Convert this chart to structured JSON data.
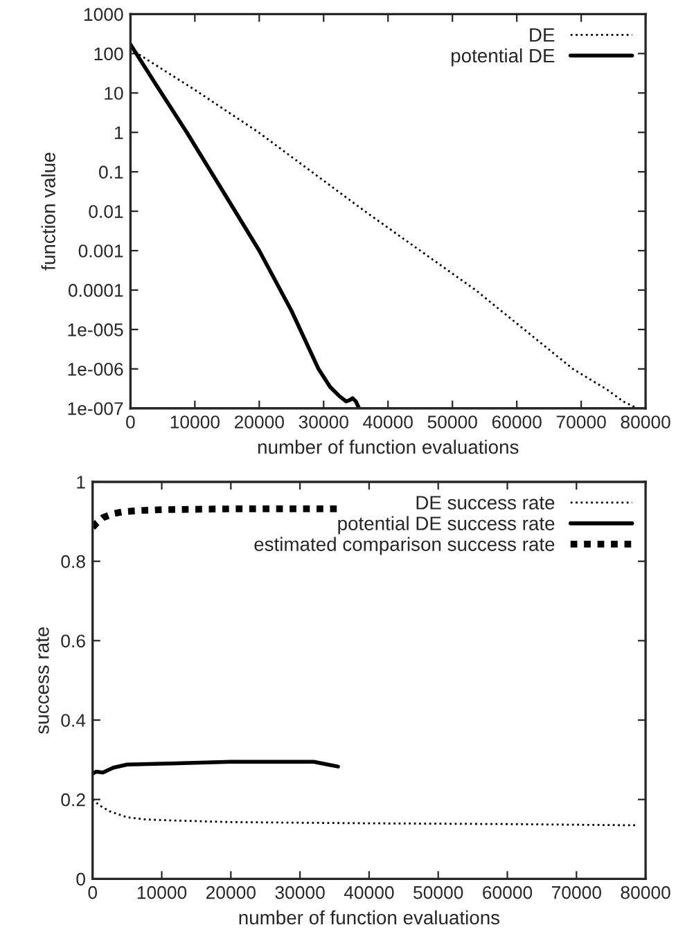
{
  "chart_data": [
    {
      "type": "line",
      "xlabel": "number of function evaluations",
      "ylabel": "function value",
      "log": "y",
      "legend": "top right",
      "grid": false,
      "xlim": [
        0,
        80000
      ],
      "xticks": [
        0,
        10000,
        20000,
        30000,
        40000,
        50000,
        60000,
        70000,
        80000
      ],
      "ylim": [
        1e-07,
        1000
      ],
      "yticks": [
        {
          "value": 1e-07,
          "label": "1e-007"
        },
        {
          "value": 1e-06,
          "label": "1e-006"
        },
        {
          "value": 1e-05,
          "label": "1e-005"
        },
        0.0001,
        0.001,
        0.01,
        0.1,
        1,
        10,
        100,
        1000
      ],
      "series": [
        {
          "name": "DE",
          "color": "#000000",
          "line_style": "dotted",
          "x": [
            0,
            10000,
            19900,
            36400,
            53600,
            68700,
            74000,
            76500,
            78700
          ],
          "values": [
            130,
            12,
            1,
            0.01,
            0.0001,
            1e-06,
            3e-07,
            1.5e-07,
            1e-07
          ]
        },
        {
          "name": "potential DE",
          "color": "#000000",
          "line_style": "solid",
          "x": [
            0,
            4000,
            8750,
            14000,
            20000,
            25000,
            29200,
            31000,
            32500,
            33500,
            34000,
            34500,
            35000,
            35500
          ],
          "values": [
            170,
            16,
            1,
            0.04,
            0.001,
            3e-05,
            1e-06,
            3.5e-07,
            2e-07,
            1.5e-07,
            1.6e-07,
            1.8e-07,
            1.5e-07,
            1e-07
          ]
        }
      ]
    },
    {
      "type": "line",
      "xlabel": "number of function evaluations",
      "ylabel": "success rate",
      "legend": "top right",
      "grid": false,
      "xlim": [
        0,
        80000
      ],
      "xticks": [
        0,
        10000,
        20000,
        30000,
        40000,
        50000,
        60000,
        70000,
        80000
      ],
      "ylim": [
        0,
        1
      ],
      "yticks": [
        0,
        0.2,
        0.4,
        0.6,
        0.8,
        1
      ],
      "series": [
        {
          "name": "DE success rate",
          "color": "#000000",
          "line_style": "dotted",
          "x": [
            0,
            1000,
            2500,
            5000,
            7500,
            10000,
            20000,
            40000,
            60000,
            78500
          ],
          "values": [
            0.2,
            0.185,
            0.17,
            0.155,
            0.15,
            0.148,
            0.143,
            0.14,
            0.138,
            0.135
          ]
        },
        {
          "name": "potential DE success rate",
          "color": "#000000",
          "line_style": "solid",
          "x": [
            0,
            500,
            1500,
            3000,
            5000,
            10000,
            20000,
            32000,
            34000,
            35500
          ],
          "values": [
            0.265,
            0.27,
            0.268,
            0.28,
            0.288,
            0.29,
            0.295,
            0.295,
            0.288,
            0.283
          ]
        },
        {
          "name": "estimated comparison success rate",
          "color": "#000000",
          "line_style": "dashed",
          "x": [
            0,
            500,
            1500,
            3000,
            4500,
            7000,
            10000,
            20000,
            35500
          ],
          "values": [
            0.885,
            0.895,
            0.91,
            0.92,
            0.925,
            0.928,
            0.93,
            0.932,
            0.932
          ]
        }
      ]
    }
  ]
}
